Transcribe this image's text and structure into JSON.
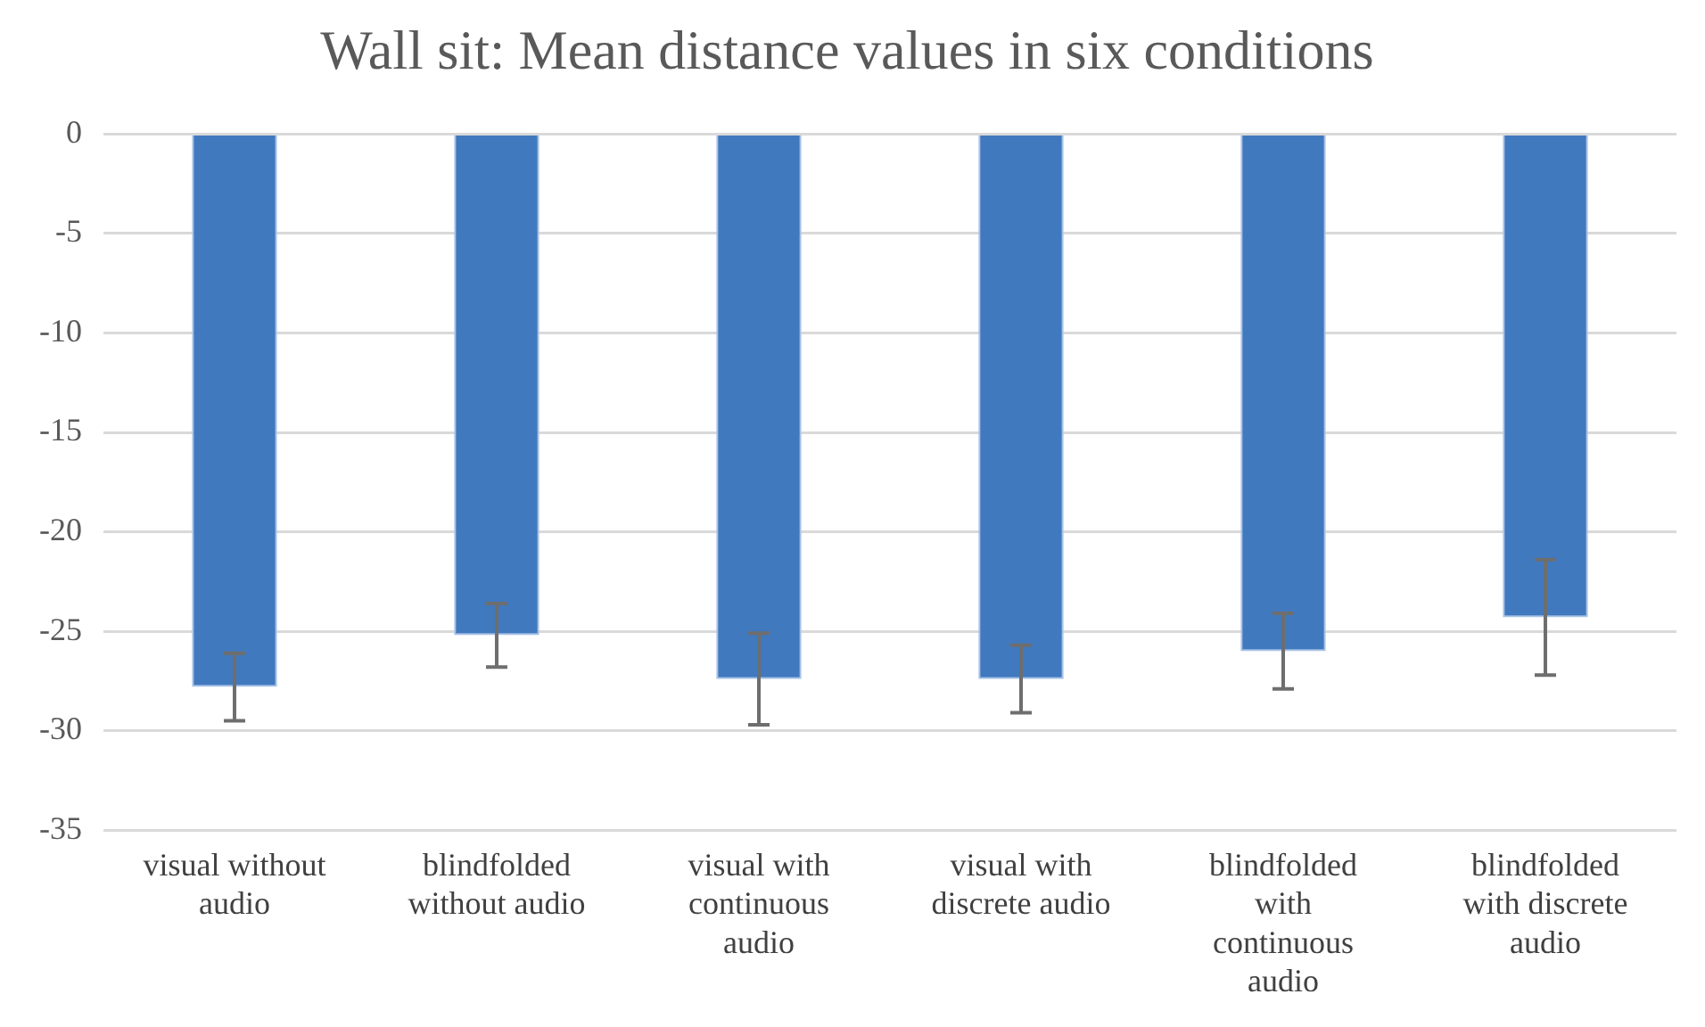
{
  "chart_data": {
    "type": "bar",
    "title": "Wall sit: Mean distance values in six conditions",
    "categories": [
      "visual without audio",
      "blindfolded without audio",
      "visual with continuous audio",
      "visual with discrete audio",
      "blindfolded with continuous audio",
      "blindfolded with discrete audio"
    ],
    "values": [
      -27.8,
      -25.2,
      -27.4,
      -27.4,
      -26.0,
      -24.3
    ],
    "errors": [
      1.7,
      1.6,
      2.3,
      1.7,
      1.9,
      2.9
    ],
    "color": "#4179bf",
    "ylim": [
      -35,
      0
    ],
    "yticks": [
      -35,
      -30,
      -25,
      -20,
      -15,
      -10,
      -5,
      0
    ],
    "grid": "y",
    "legend": false
  }
}
